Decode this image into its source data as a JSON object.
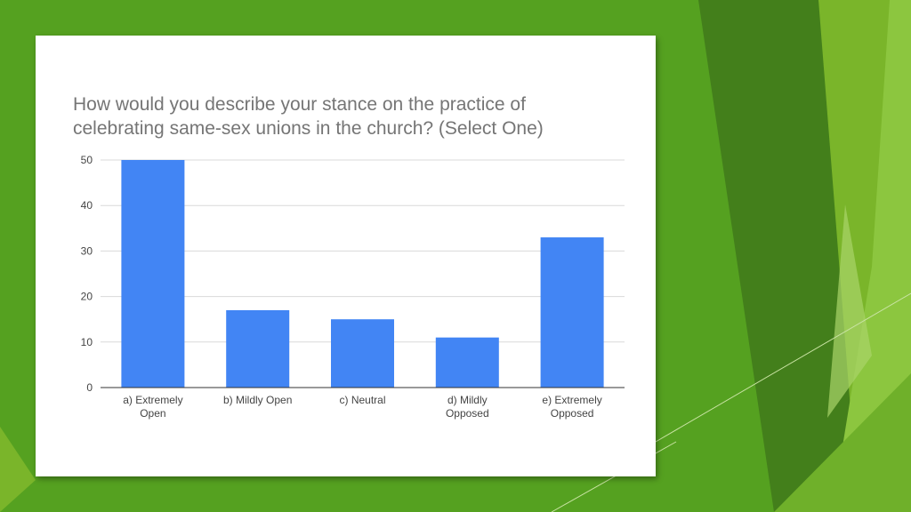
{
  "colors": {
    "background": "#55a120",
    "background_light": "#7ab52a",
    "background_bright": "#8cc63f",
    "background_dark": "#437f1b",
    "card": "#ffffff",
    "bar": "#4285f4",
    "title_text": "#757575",
    "tick_text": "#444444",
    "grid": "#d9d9d9",
    "baseline": "#333333"
  },
  "chart_data": {
    "type": "bar",
    "title": [
      "How would you describe your stance on the practice of",
      "celebrating same-sex unions in the church? (Select One)"
    ],
    "xlabel": "",
    "ylabel": "",
    "categories": [
      [
        "a) Extremely",
        "Open"
      ],
      [
        "b) Mildly Open"
      ],
      [
        "c) Neutral"
      ],
      [
        "d) Mildly",
        "Opposed"
      ],
      [
        "e) Extremely",
        "Opposed"
      ]
    ],
    "values": [
      50,
      17,
      15,
      11,
      33
    ],
    "ylim": [
      0,
      50
    ],
    "yticks": [
      0,
      10,
      20,
      30,
      40,
      50
    ],
    "grid": true,
    "legend": "none"
  }
}
